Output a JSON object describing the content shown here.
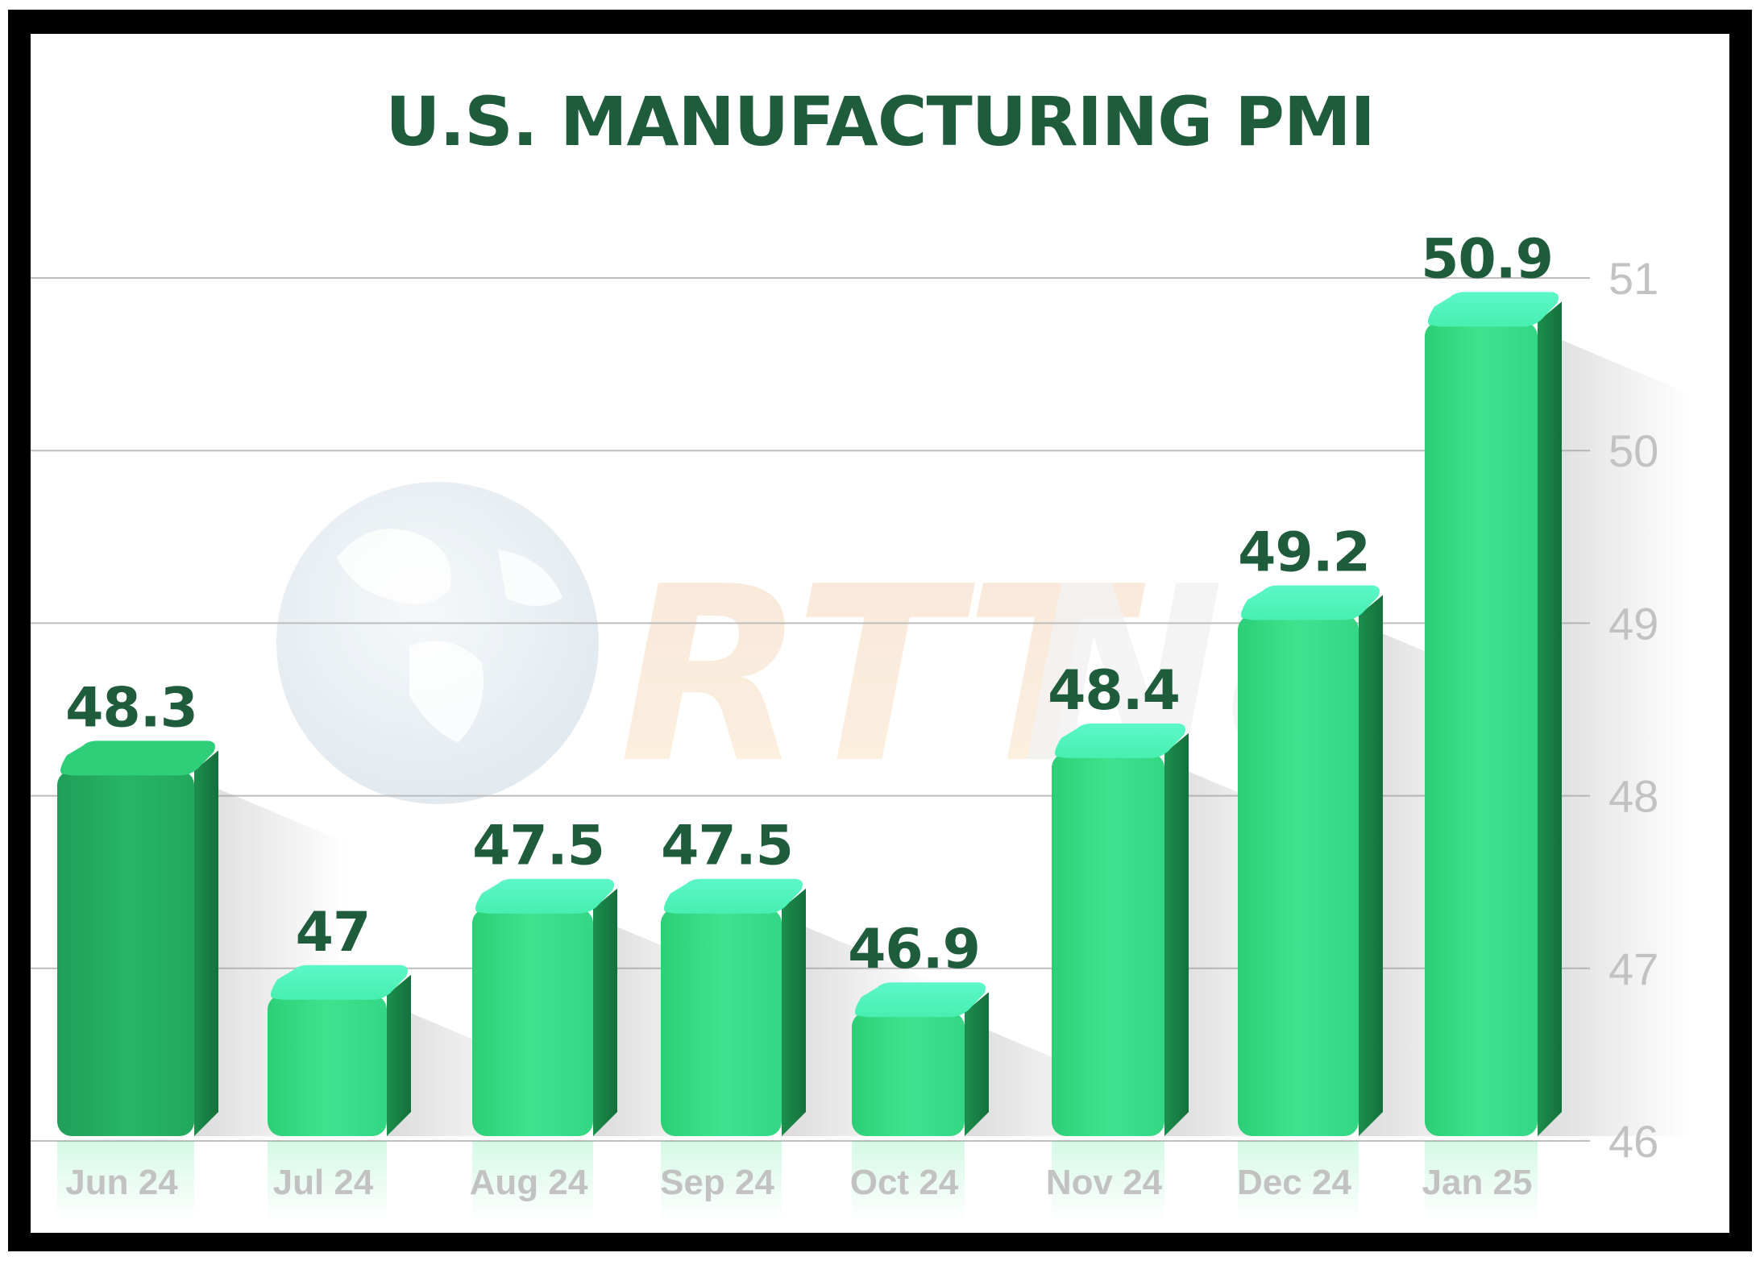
{
  "chart_data": {
    "type": "bar",
    "title": "U.S. MANUFACTURING PMI",
    "xlabel": "",
    "ylabel": "",
    "categories": [
      "Jun 24",
      "Jul 24",
      "Aug 24",
      "Sep 24",
      "Oct 24",
      "Nov 24",
      "Dec 24",
      "Jan 25"
    ],
    "values": [
      48.3,
      47,
      47.5,
      47.5,
      46.9,
      48.4,
      49.2,
      50.9
    ],
    "data_labels": [
      "48.3",
      "47",
      "47.5",
      "47.5",
      "46.9",
      "48.4",
      "49.2",
      "50.9"
    ],
    "ylim": [
      46,
      51
    ],
    "yticks": [
      "46",
      "47",
      "48",
      "49",
      "50",
      "51"
    ],
    "y_axis_side": "right",
    "grid": true,
    "colors": {
      "title": "#1f5c3c",
      "data_label": "#1f5c3c",
      "bar_dark": "#23b868",
      "bar_mid": "#3ee08f",
      "bar_light": "#4ff5c0",
      "tick_label": "#c2c2c2",
      "gridline": "#bdbdbd"
    }
  }
}
